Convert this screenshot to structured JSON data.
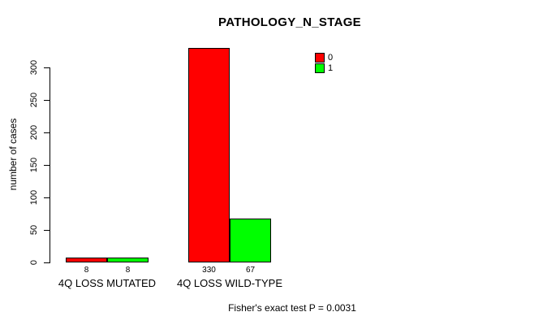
{
  "chart_data": {
    "type": "bar",
    "title": "PATHOLOGY_N_STAGE",
    "xlabel": "",
    "ylabel": "number of cases",
    "categories": [
      "4Q LOSS MUTATED",
      "4Q LOSS WILD-TYPE"
    ],
    "series": [
      {
        "name": "0",
        "color": "#ff0000",
        "values": [
          8,
          330
        ]
      },
      {
        "name": "1",
        "color": "#00ff00",
        "values": [
          8,
          67
        ]
      }
    ],
    "bar_value_labels": [
      [
        "8",
        "8"
      ],
      [
        "330",
        "67"
      ]
    ],
    "yticks": [
      0,
      50,
      100,
      150,
      200,
      250,
      300
    ],
    "ylim": [
      0,
      335
    ],
    "grid": false,
    "legend_position": "top-right",
    "annotation": "Fisher's exact test P = 0.0031"
  },
  "colors": {
    "series_0": "#ff0000",
    "series_1": "#00ff00",
    "axis": "#000000",
    "text": "#000000",
    "background": "#ffffff"
  }
}
